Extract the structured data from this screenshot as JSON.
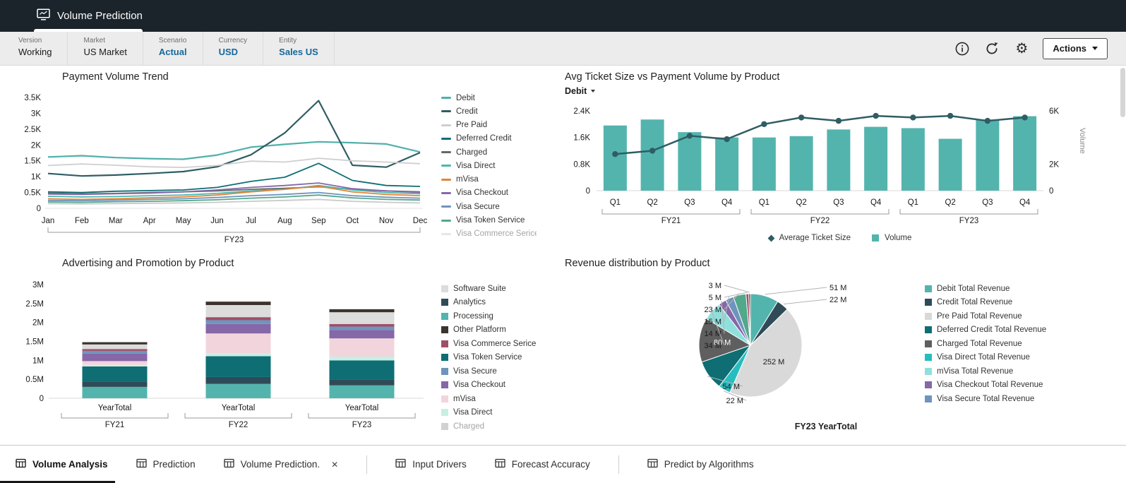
{
  "header": {
    "title": "Volume Prediction"
  },
  "pov": {
    "items": [
      {
        "label": "Version",
        "value": "Working",
        "accent": false
      },
      {
        "label": "Market",
        "value": "US Market",
        "accent": false
      },
      {
        "label": "Scenario",
        "value": "Actual",
        "accent": true
      },
      {
        "label": "Currency",
        "value": "USD",
        "accent": true
      },
      {
        "label": "Entity",
        "value": "Sales US",
        "accent": true
      }
    ],
    "actions_label": "Actions"
  },
  "colors": {
    "accent_blue": "#15699B",
    "header_bg": "#1B242B",
    "bar_teal": "#53B4AE",
    "line_dark": "#2F5D63"
  },
  "chart_data": [
    {
      "type": "line",
      "title": "Payment Volume Trend",
      "x": [
        "Jan",
        "Feb",
        "Mar",
        "Apr",
        "May",
        "Jun",
        "Jul",
        "Aug",
        "Sep",
        "Oct",
        "Nov",
        "Dec"
      ],
      "group_label": "FY23",
      "ylim": [
        0,
        3.5
      ],
      "yticks": [
        "0",
        "0.5K",
        "1K",
        "1.5K",
        "2K",
        "2.5K",
        "3K",
        "3.5K"
      ],
      "series": [
        {
          "name": "Debit",
          "color": "#4FB0AB",
          "values": [
            1.62,
            1.66,
            1.6,
            1.57,
            1.55,
            1.68,
            1.93,
            2.02,
            2.1,
            2.07,
            2.03,
            1.78
          ]
        },
        {
          "name": "Credit",
          "color": "#2F5D63",
          "values": [
            1.1,
            1.02,
            1.05,
            1.1,
            1.16,
            1.31,
            1.69,
            2.38,
            3.4,
            1.36,
            1.3,
            1.76
          ]
        },
        {
          "name": "Pre Paid",
          "color": "#CFCFCF",
          "values": [
            1.35,
            1.4,
            1.36,
            1.31,
            1.29,
            1.35,
            1.49,
            1.46,
            1.58,
            1.5,
            1.46,
            1.41
          ]
        },
        {
          "name": "Deferred Credit",
          "color": "#0E6E74",
          "values": [
            0.52,
            0.5,
            0.54,
            0.56,
            0.58,
            0.66,
            0.85,
            0.98,
            1.42,
            0.88,
            0.72,
            0.69
          ]
        },
        {
          "name": "Charged",
          "color": "#5F6A6A",
          "values": [
            0.48,
            0.46,
            0.47,
            0.5,
            0.52,
            0.55,
            0.6,
            0.63,
            0.68,
            0.6,
            0.55,
            0.52
          ]
        },
        {
          "name": "Visa Direct",
          "color": "#49B8B0",
          "values": [
            0.38,
            0.36,
            0.37,
            0.4,
            0.42,
            0.47,
            0.55,
            0.6,
            0.72,
            0.58,
            0.5,
            0.46
          ]
        },
        {
          "name": "mVisa",
          "color": "#E08639",
          "values": [
            0.3,
            0.28,
            0.3,
            0.33,
            0.36,
            0.42,
            0.52,
            0.6,
            0.7,
            0.52,
            0.44,
            0.4
          ]
        },
        {
          "name": "Visa Checkout",
          "color": "#8667A8",
          "values": [
            0.45,
            0.44,
            0.46,
            0.48,
            0.52,
            0.58,
            0.66,
            0.72,
            0.8,
            0.62,
            0.55,
            0.5
          ]
        },
        {
          "name": "Visa Secure",
          "color": "#6E94BD",
          "values": [
            0.25,
            0.24,
            0.26,
            0.28,
            0.3,
            0.34,
            0.4,
            0.44,
            0.5,
            0.4,
            0.35,
            0.32
          ]
        },
        {
          "name": "Visa Token Service",
          "color": "#52A88A",
          "values": [
            0.2,
            0.19,
            0.21,
            0.22,
            0.24,
            0.27,
            0.32,
            0.36,
            0.42,
            0.33,
            0.28,
            0.26
          ]
        },
        {
          "name": "Visa Commerce Serice",
          "color": "#C9C9C9",
          "values": [
            0.15,
            0.14,
            0.15,
            0.16,
            0.17,
            0.19,
            0.22,
            0.25,
            0.28,
            0.22,
            0.19,
            0.17
          ],
          "muted": true
        }
      ]
    },
    {
      "type": "combo",
      "title": "Avg Ticket Size vs Payment Volume by Product",
      "filter": "Debit",
      "x": [
        "Q1",
        "Q2",
        "Q3",
        "Q4",
        "Q1",
        "Q2",
        "Q3",
        "Q4",
        "Q1",
        "Q2",
        "Q3",
        "Q4"
      ],
      "groups": [
        "FY21",
        "FY22",
        "FY23"
      ],
      "bar_series": {
        "name": "Volume",
        "color": "#53B4AE",
        "axis": "right",
        "values": [
          4.9,
          5.35,
          4.4,
          4.0,
          4.0,
          4.1,
          4.6,
          4.8,
          4.7,
          3.9,
          5.35,
          5.6
        ]
      },
      "line_series": {
        "name": "Average Ticket Size",
        "color": "#2F5D63",
        "axis": "left",
        "values": [
          1.1,
          1.2,
          1.65,
          1.55,
          2.0,
          2.2,
          2.1,
          2.25,
          2.2,
          2.25,
          2.1,
          2.2
        ]
      },
      "left_ylim": [
        0,
        2.4
      ],
      "left_yticks": [
        "0",
        "0.8K",
        "1.6K",
        "2.4K"
      ],
      "right_ylim": [
        0,
        6
      ],
      "right_yticks": [
        {
          "v": 0,
          "label": "0"
        },
        {
          "v": 2,
          "label": "2K"
        },
        {
          "v": 6,
          "label": "6K"
        }
      ],
      "right_axis_label": "Volume"
    },
    {
      "type": "stacked_bar",
      "title": "Advertising and Promotion by Product",
      "categories": [
        "YearTotal",
        "YearTotal",
        "YearTotal"
      ],
      "group_labels": [
        "FY21",
        "FY22",
        "FY23"
      ],
      "ylim": [
        0,
        3
      ],
      "yticks": [
        "0",
        "0.5M",
        "1M",
        "1.5M",
        "2M",
        "2.5M",
        "3M"
      ],
      "series": [
        {
          "name": "Software Suite",
          "color": "#DCDCDC",
          "values": [
            0.12,
            0.32,
            0.31
          ]
        },
        {
          "name": "Analytics",
          "color": "#2F4B57",
          "values": [
            0.14,
            0.18,
            0.16
          ]
        },
        {
          "name": "Processing",
          "color": "#53B4AE",
          "values": [
            0.3,
            0.38,
            0.34
          ]
        },
        {
          "name": "Other Platform",
          "color": "#3B332E",
          "values": [
            0.06,
            0.09,
            0.08
          ]
        },
        {
          "name": "Visa Commerce Serice",
          "color": "#A04E68",
          "values": [
            0.05,
            0.08,
            0.07
          ]
        },
        {
          "name": "Visa Token Service",
          "color": "#0E6E74",
          "values": [
            0.4,
            0.55,
            0.5
          ]
        },
        {
          "name": "Visa Secure",
          "color": "#6E94BD",
          "values": [
            0.07,
            0.1,
            0.09
          ]
        },
        {
          "name": "Visa Checkout",
          "color": "#8667A8",
          "values": [
            0.2,
            0.25,
            0.22
          ]
        },
        {
          "name": "mVisa",
          "color": "#F2D5DC",
          "values": [
            0.1,
            0.52,
            0.48
          ]
        },
        {
          "name": "Visa Direct",
          "color": "#C8EFE4",
          "values": [
            0.04,
            0.08,
            0.1
          ]
        },
        {
          "name": "Charged",
          "color": "#9A9A9A",
          "values": [
            0,
            0,
            0
          ],
          "muted": true
        }
      ],
      "stack_order": [
        "Processing",
        "Analytics",
        "Visa Token Service",
        "Visa Direct",
        "mVisa",
        "Visa Checkout",
        "Visa Secure",
        "Visa Commerce Serice",
        "Software Suite",
        "Other Platform"
      ]
    },
    {
      "type": "pie",
      "title": "Revenue distribution by Product",
      "caption": "FY23 YearTotal",
      "unit": "M",
      "slices": [
        {
          "name": "Debit Total Revenue",
          "value": 51,
          "color": "#53B4AE"
        },
        {
          "name": "Credit Total Revenue",
          "value": 22,
          "color": "#2F4B57"
        },
        {
          "name": "Pre Paid Total Revenue",
          "value": 252,
          "color": "#D9D9D9",
          "label_color": "#1a1a1a"
        },
        {
          "name": "Visa Direct Total Revenue",
          "value": 22,
          "color": "#27BDBE"
        },
        {
          "name": "Deferred Credit Total Revenue",
          "value": 54,
          "color": "#0E6E74"
        },
        {
          "name": "Charged Total Revenue",
          "value": 80,
          "color": "#5F5F5F",
          "label_color": "#ffffff"
        },
        {
          "name": "mVisa Total Revenue",
          "value": 34,
          "color": "#8FE0DC"
        },
        {
          "name": "Visa Checkout Total Revenue",
          "value": 14,
          "color": "#8667A8"
        },
        {
          "name": "Visa Secure Total Revenue",
          "value": 15,
          "color": "#6E94BD"
        },
        {
          "value": 23,
          "color": "#52A88A"
        },
        {
          "value": 5,
          "color": "#A04E68"
        },
        {
          "value": 3,
          "color": "#4A3B32"
        }
      ],
      "legend": [
        "Debit Total Revenue",
        "Credit Total Revenue",
        "Pre Paid Total Revenue",
        "Deferred Credit Total Revenue",
        "Charged Total Revenue",
        "Visa Direct Total Revenue",
        "mVisa Total Revenue",
        "Visa Checkout Total Revenue",
        "Visa Secure Total Revenue"
      ]
    }
  ],
  "tabs": [
    {
      "label": "Volume Analysis",
      "active": true,
      "closable": false,
      "divider_after": false
    },
    {
      "label": "Prediction",
      "active": false,
      "closable": false,
      "divider_after": false
    },
    {
      "label": "Volume Prediction.",
      "active": false,
      "closable": true,
      "divider_after": true
    },
    {
      "label": "Input Drivers",
      "active": false,
      "closable": false,
      "divider_after": false
    },
    {
      "label": "Forecast Accuracy",
      "active": false,
      "closable": false,
      "divider_after": true
    },
    {
      "label": "Predict by Algorithms",
      "active": false,
      "closable": false,
      "divider_after": false
    }
  ]
}
